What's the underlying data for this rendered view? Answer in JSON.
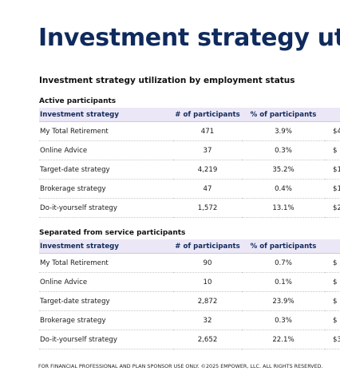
{
  "page": {
    "title": "Investment strategy utiliza",
    "subtitle": "Investment strategy utilization by employment status",
    "footer": "FOR FINANCIAL PROFESSIONAL AND PLAN SPONSOR USE ONLY. ©2025 EMPOWER, LLC. ALL RIGHTS RESERVED."
  },
  "columns": [
    "Investment strategy",
    "# of participants",
    "% of participants",
    ""
  ],
  "active": {
    "label": "Active participants",
    "rows": [
      {
        "strategy": "My Total Retirement",
        "count": "471",
        "pct": "3.9%",
        "extra": "$4"
      },
      {
        "strategy": "Online Advice",
        "count": "37",
        "pct": "0.3%",
        "extra": "$"
      },
      {
        "strategy": "Target-date strategy",
        "count": "4,219",
        "pct": "35.2%",
        "extra": "$1"
      },
      {
        "strategy": "Brokerage strategy",
        "count": "47",
        "pct": "0.4%",
        "extra": "$1"
      },
      {
        "strategy": "Do-it-yourself strategy",
        "count": "1,572",
        "pct": "13.1%",
        "extra": "$2"
      }
    ]
  },
  "separated": {
    "label": "Separated from service participants",
    "rows": [
      {
        "strategy": "My Total Retirement",
        "count": "90",
        "pct": "0.7%",
        "extra": "$"
      },
      {
        "strategy": "Online Advice",
        "count": "10",
        "pct": "0.1%",
        "extra": "$"
      },
      {
        "strategy": "Target-date strategy",
        "count": "2,872",
        "pct": "23.9%",
        "extra": "$"
      },
      {
        "strategy": "Brokerage strategy",
        "count": "32",
        "pct": "0.3%",
        "extra": "$"
      },
      {
        "strategy": "Do-it-yourself strategy",
        "count": "2,652",
        "pct": "22.1%",
        "extra": "$3"
      }
    ]
  }
}
